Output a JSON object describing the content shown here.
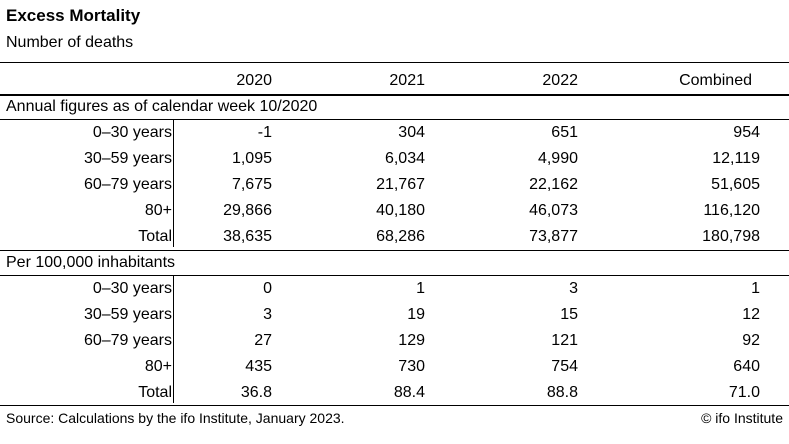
{
  "title": "Excess Mortality",
  "subtitle": "Number of deaths",
  "columns": [
    "2020",
    "2021",
    "2022",
    "Combined"
  ],
  "sections": [
    {
      "title": "Annual figures as of calendar week 10/2020",
      "rows": [
        {
          "label": "0–30 years",
          "values": [
            "-1",
            "304",
            "651",
            "954"
          ]
        },
        {
          "label": "30–59 years",
          "values": [
            "1,095",
            "6,034",
            "4,990",
            "12,119"
          ]
        },
        {
          "label": "60–79 years",
          "values": [
            "7,675",
            "21,767",
            "22,162",
            "51,605"
          ]
        },
        {
          "label": "80+",
          "values": [
            "29,866",
            "40,180",
            "46,073",
            "116,120"
          ]
        },
        {
          "label": "Total",
          "values": [
            "38,635",
            "68,286",
            "73,877",
            "180,798"
          ]
        }
      ]
    },
    {
      "title": "Per 100,000 inhabitants",
      "rows": [
        {
          "label": "0–30 years",
          "values": [
            "0",
            "1",
            "3",
            "1"
          ]
        },
        {
          "label": "30–59 years",
          "values": [
            "3",
            "19",
            "15",
            "12"
          ]
        },
        {
          "label": "60–79 years",
          "values": [
            "27",
            "129",
            "121",
            "92"
          ]
        },
        {
          "label": "80+",
          "values": [
            "435",
            "730",
            "754",
            "640"
          ]
        },
        {
          "label": "Total",
          "values": [
            "36.8",
            "88.4",
            "88.8",
            "71.0"
          ]
        }
      ]
    }
  ],
  "footer": {
    "source": "Source: Calculations by the ifo Institute, January 2023.",
    "copyright": "© ifo Institute"
  }
}
